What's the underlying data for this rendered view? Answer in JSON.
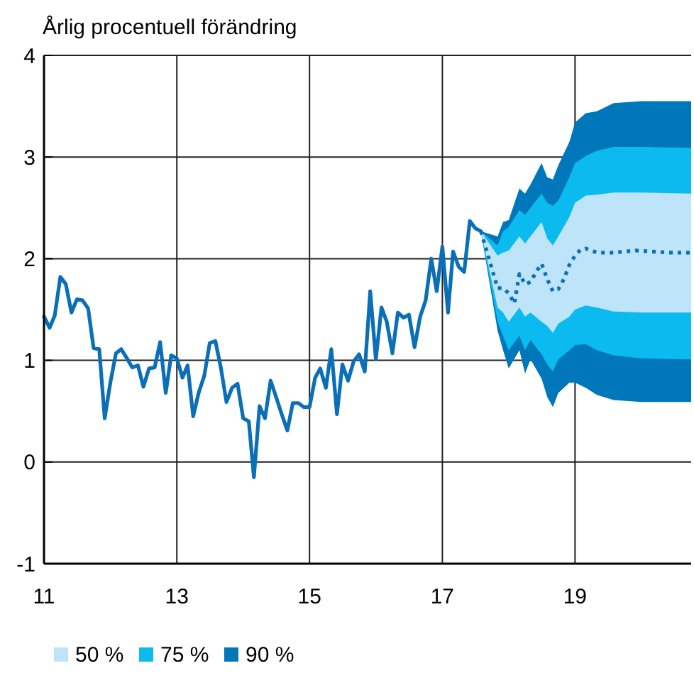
{
  "chart_data": {
    "type": "line",
    "subtitle": "Årlig procentuell förändring",
    "xlim": [
      "2011-01",
      "2020-10"
    ],
    "xticks": [
      {
        "value": "2011-01",
        "label": "11"
      },
      {
        "value": "2013-01",
        "label": "13"
      },
      {
        "value": "2015-01",
        "label": "15"
      },
      {
        "value": "2017-01",
        "label": "17"
      },
      {
        "value": "2019-01",
        "label": "19"
      }
    ],
    "ylim": [
      -1,
      4
    ],
    "yticks": [
      -1,
      0,
      1,
      2,
      3,
      4
    ],
    "grid": true,
    "legend": "bottom left",
    "marker": "none",
    "series": [
      {
        "name": "50 %",
        "color": "#bde4f8",
        "x": [
          "2017-08",
          "2017-11",
          "2017-12",
          "2018-01",
          "2018-03",
          "2018-04",
          "2018-05",
          "2018-07",
          "2018-08",
          "2018-09",
          "2018-10",
          "2018-12",
          "2019-01",
          "2019-03",
          "2019-05",
          "2019-08",
          "2020-01",
          "2020-10"
        ],
        "values": [
          null,
          null,
          null,
          null,
          null,
          null,
          null,
          null,
          null,
          null,
          null,
          null,
          null,
          null,
          null,
          null,
          null,
          null
        ],
        "lower": [
          2.27,
          1.52,
          1.47,
          1.38,
          1.52,
          1.43,
          1.47,
          1.38,
          1.34,
          1.27,
          1.36,
          1.43,
          1.5,
          1.54,
          1.52,
          1.48,
          1.47,
          1.47
        ],
        "upper": [
          2.27,
          2.03,
          2.06,
          2.08,
          2.22,
          2.15,
          2.22,
          2.36,
          2.2,
          2.13,
          2.22,
          2.41,
          2.55,
          2.62,
          2.63,
          2.65,
          2.65,
          2.64
        ]
      },
      {
        "name": "75 %",
        "color": "#0bbbef",
        "x": [
          "2017-08",
          "2017-11",
          "2017-12",
          "2018-01",
          "2018-03",
          "2018-04",
          "2018-05",
          "2018-07",
          "2018-08",
          "2018-09",
          "2018-10",
          "2018-12",
          "2019-01",
          "2019-03",
          "2019-05",
          "2019-08",
          "2020-01",
          "2020-10"
        ],
        "values": [
          null,
          null,
          null,
          null,
          null,
          null,
          null,
          null,
          null,
          null,
          null,
          null,
          null,
          null,
          null,
          null,
          null,
          null
        ],
        "lower": [
          2.27,
          1.38,
          1.24,
          1.1,
          1.24,
          1.1,
          1.2,
          1.06,
          0.96,
          0.89,
          1.01,
          1.1,
          1.15,
          1.16,
          1.1,
          1.05,
          1.02,
          1.01
        ],
        "upper": [
          2.27,
          2.13,
          2.27,
          2.31,
          2.48,
          2.43,
          2.5,
          2.64,
          2.55,
          2.52,
          2.57,
          2.8,
          2.94,
          3.01,
          3.06,
          3.1,
          3.1,
          3.09
        ]
      },
      {
        "name": "90 %",
        "color": "#0077bb",
        "x": [
          "2017-08",
          "2017-11",
          "2017-12",
          "2018-01",
          "2018-03",
          "2018-04",
          "2018-05",
          "2018-07",
          "2018-08",
          "2018-09",
          "2018-10",
          "2018-12",
          "2019-01",
          "2019-03",
          "2019-05",
          "2019-08",
          "2020-01",
          "2020-10"
        ],
        "values": [
          null,
          null,
          null,
          null,
          null,
          null,
          null,
          null,
          null,
          null,
          null,
          null,
          null,
          null,
          null,
          null,
          null,
          null
        ],
        "lower": [
          2.27,
          1.29,
          1.1,
          0.92,
          1.1,
          0.87,
          1.01,
          0.82,
          0.64,
          0.54,
          0.68,
          0.78,
          0.78,
          0.73,
          0.66,
          0.61,
          0.59,
          0.59
        ],
        "upper": [
          2.27,
          2.22,
          2.36,
          2.38,
          2.69,
          2.64,
          2.73,
          2.94,
          2.8,
          2.78,
          2.92,
          3.15,
          3.34,
          3.43,
          3.45,
          3.53,
          3.55,
          3.55
        ]
      },
      {
        "color": "#0b6fb8",
        "line_style": "solid",
        "x": [
          "2011-01",
          "2011-02",
          "2011-03",
          "2011-04",
          "2011-05",
          "2011-06",
          "2011-07",
          "2011-08",
          "2011-09",
          "2011-10",
          "2011-11",
          "2011-12",
          "2012-01",
          "2012-02",
          "2012-03",
          "2012-04",
          "2012-05",
          "2012-06",
          "2012-07",
          "2012-08",
          "2012-09",
          "2012-10",
          "2012-11",
          "2012-12",
          "2013-01",
          "2013-02",
          "2013-03",
          "2013-04",
          "2013-05",
          "2013-06",
          "2013-07",
          "2013-08",
          "2013-09",
          "2013-10",
          "2013-11",
          "2013-12",
          "2014-01",
          "2014-02",
          "2014-03",
          "2014-04",
          "2014-05",
          "2014-06",
          "2014-07",
          "2014-08",
          "2014-09",
          "2014-10",
          "2014-11",
          "2014-12",
          "2015-01",
          "2015-02",
          "2015-03",
          "2015-04",
          "2015-05",
          "2015-06",
          "2015-07",
          "2015-08",
          "2015-09",
          "2015-10",
          "2015-11",
          "2015-12",
          "2016-01",
          "2016-02",
          "2016-03",
          "2016-04",
          "2016-05",
          "2016-06",
          "2016-07",
          "2016-08",
          "2016-09",
          "2016-10",
          "2016-11",
          "2016-12",
          "2017-01",
          "2017-02",
          "2017-03",
          "2017-04",
          "2017-05",
          "2017-06",
          "2017-07",
          "2017-08"
        ],
        "values": [
          1.43,
          1.32,
          1.44,
          1.82,
          1.75,
          1.47,
          1.6,
          1.59,
          1.51,
          1.12,
          1.11,
          0.43,
          0.78,
          1.07,
          1.11,
          1.02,
          0.93,
          0.95,
          0.74,
          0.92,
          0.93,
          1.18,
          0.68,
          1.05,
          1.02,
          0.83,
          0.95,
          0.45,
          0.68,
          0.85,
          1.17,
          1.19,
          0.92,
          0.59,
          0.73,
          0.77,
          0.43,
          0.4,
          -0.15,
          0.55,
          0.43,
          0.8,
          0.64,
          0.47,
          0.31,
          0.58,
          0.58,
          0.54,
          0.54,
          0.83,
          0.92,
          0.73,
          1.11,
          0.47,
          0.96,
          0.8,
          0.99,
          1.06,
          0.89,
          1.68,
          1.01,
          1.52,
          1.38,
          1.07,
          1.47,
          1.42,
          1.45,
          1.13,
          1.43,
          1.59,
          2.0,
          1.68,
          2.12,
          1.47,
          2.07,
          1.92,
          1.87,
          2.37,
          2.3,
          2.27
        ]
      },
      {
        "color": "#0b6fb8",
        "line_style": "dotted",
        "x": [
          "2017-08",
          "2017-11",
          "2017-12",
          "2018-01",
          "2018-02",
          "2018-03",
          "2018-04",
          "2018-05",
          "2018-06",
          "2018-07",
          "2018-08",
          "2018-09",
          "2018-10",
          "2018-11",
          "2018-12",
          "2019-01",
          "2019-02",
          "2019-03",
          "2019-05",
          "2019-08",
          "2019-12",
          "2020-03",
          "2020-06",
          "2020-10"
        ],
        "values": [
          2.27,
          1.71,
          1.71,
          1.66,
          1.56,
          1.85,
          1.75,
          1.77,
          1.87,
          1.95,
          1.8,
          1.68,
          1.7,
          1.8,
          1.94,
          2.03,
          2.09,
          2.1,
          2.06,
          2.06,
          2.08,
          2.07,
          2.06,
          2.06
        ]
      }
    ]
  }
}
